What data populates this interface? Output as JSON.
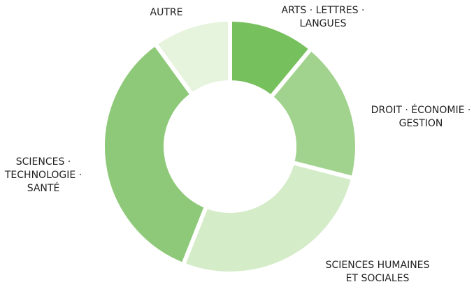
{
  "chart_data": {
    "type": "donut",
    "categories": [
      "ARTS · LETTRES ·\nLANGUES",
      "DROIT · ÉCONOMIE ·\nGESTION",
      "SCIENCES HUMAINES\nET SOCIALES",
      "SCIENCES ·\nTECHNOLOGIE ·\nSANTÉ",
      "AUTRE"
    ],
    "values": [
      11,
      18,
      27,
      34,
      10
    ],
    "colors": [
      "#77c05e",
      "#a1d38e",
      "#d5ecc9",
      "#8ec979",
      "#e6f3dd"
    ]
  }
}
